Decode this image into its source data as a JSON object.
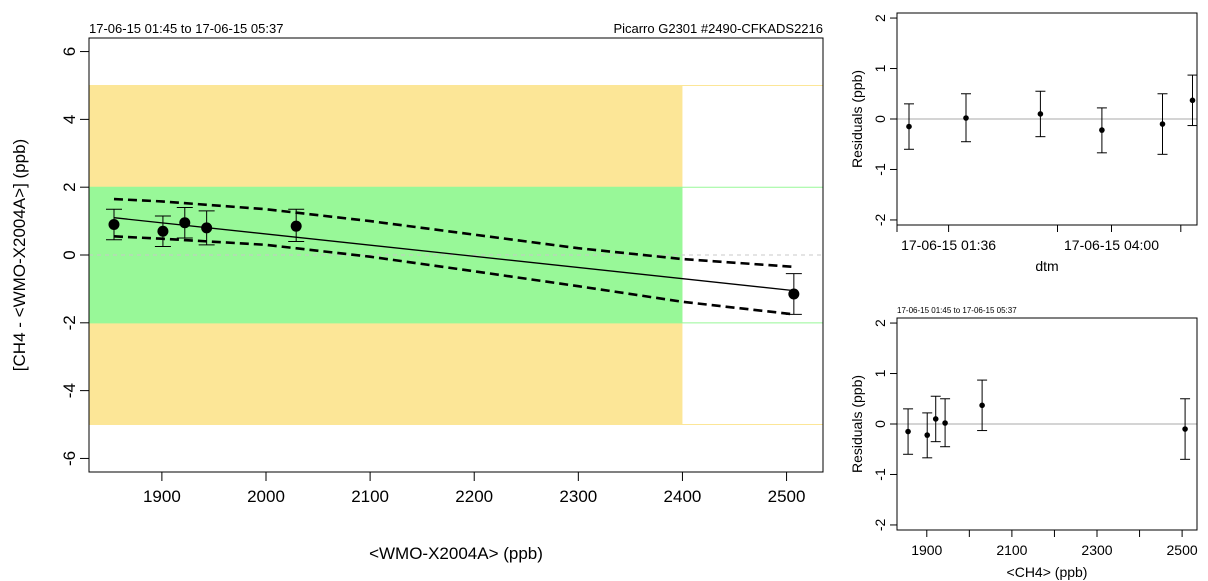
{
  "chart_data": [
    {
      "type": "scatter",
      "header_left": "17-06-15 01:45 to 17-06-15 05:37",
      "header_right": "Picarro G2301 #2490-CFKADS2216",
      "xlabel": "<WMO-X2004A> (ppb)",
      "ylabel": "[CH4 - <WMO-X2004A>] (ppb)",
      "xlim": [
        1830,
        2535
      ],
      "ylim": [
        -6.4,
        6.4
      ],
      "xticks": [
        1900,
        2000,
        2100,
        2200,
        2300,
        2400,
        2500
      ],
      "yticks": [
        -6,
        -4,
        -2,
        0,
        2,
        4,
        6
      ],
      "bands": [
        {
          "name": "compatibility-goal-outer",
          "color": "#fce697",
          "x": [
            1830,
            2400
          ],
          "y": [
            -5,
            5
          ]
        },
        {
          "name": "compatibility-goal-inner",
          "color": "#98f898",
          "x": [
            1830,
            2400
          ],
          "y": [
            -2,
            2
          ]
        }
      ],
      "hlines": [
        {
          "y": 5,
          "color": "#fce697"
        },
        {
          "y": -5,
          "color": "#fce697"
        },
        {
          "y": 2,
          "color": "#98f898"
        },
        {
          "y": -2,
          "color": "#98f898"
        },
        {
          "y": 0,
          "color": "#c8c8c8",
          "dashed": true
        }
      ],
      "points": [
        {
          "x": 1854,
          "y": 0.9,
          "lo": 0.45,
          "hi": 1.35
        },
        {
          "x": 1901,
          "y": 0.7,
          "lo": 0.25,
          "hi": 1.15
        },
        {
          "x": 1922,
          "y": 0.95,
          "lo": 0.5,
          "hi": 1.4
        },
        {
          "x": 1943,
          "y": 0.8,
          "lo": 0.3,
          "hi": 1.3
        },
        {
          "x": 2029,
          "y": 0.85,
          "lo": 0.4,
          "hi": 1.35
        },
        {
          "x": 2507,
          "y": -1.15,
          "lo": -1.75,
          "hi": -0.55
        }
      ],
      "fit_line": [
        [
          1854,
          1.1
        ],
        [
          2507,
          -1.05
        ]
      ],
      "ci_upper": [
        [
          1854,
          1.65
        ],
        [
          1900,
          1.58
        ],
        [
          2000,
          1.35
        ],
        [
          2100,
          1.0
        ],
        [
          2200,
          0.6
        ],
        [
          2300,
          0.2
        ],
        [
          2400,
          -0.12
        ],
        [
          2507,
          -0.35
        ]
      ],
      "ci_lower": [
        [
          1854,
          0.55
        ],
        [
          1900,
          0.48
        ],
        [
          2000,
          0.3
        ],
        [
          2100,
          -0.05
        ],
        [
          2200,
          -0.48
        ],
        [
          2300,
          -0.92
        ],
        [
          2400,
          -1.38
        ],
        [
          2507,
          -1.75
        ]
      ]
    },
    {
      "type": "scatter",
      "xlabel": "dtm",
      "ylabel": "Residuals (ppb)",
      "xlim": [
        0,
        100
      ],
      "ylim": [
        -2.1,
        2.1
      ],
      "xticks": [
        0,
        17.2,
        53.5,
        71.5,
        94.6
      ],
      "xticklabels": [
        "",
        "17-06-15 01:36",
        "",
        "17-06-15 04:00",
        ""
      ],
      "yticks": [
        -2,
        -1,
        0,
        1,
        2
      ],
      "hline": 0,
      "points": [
        {
          "x": 4,
          "y": -0.15,
          "lo": -0.6,
          "hi": 0.3
        },
        {
          "x": 23,
          "y": 0.02,
          "lo": -0.45,
          "hi": 0.5
        },
        {
          "x": 47.8,
          "y": 0.1,
          "lo": -0.35,
          "hi": 0.55
        },
        {
          "x": 68.3,
          "y": -0.22,
          "lo": -0.67,
          "hi": 0.22
        },
        {
          "x": 88.5,
          "y": -0.1,
          "lo": -0.7,
          "hi": 0.5
        },
        {
          "x": 98.5,
          "y": 0.37,
          "lo": -0.13,
          "hi": 0.87
        }
      ]
    },
    {
      "type": "scatter",
      "header_left": "17-06-15 01:45 to 17-06-15 05:37",
      "xlabel": "<CH4> (ppb)",
      "ylabel": "Residuals (ppb)",
      "xlim": [
        1830,
        2535
      ],
      "ylim": [
        -2.1,
        2.1
      ],
      "xticks": [
        1900,
        2000,
        2100,
        2200,
        2300,
        2400,
        2500
      ],
      "xticklabels": [
        "1900",
        "",
        "2100",
        "",
        "2300",
        "",
        "2500"
      ],
      "yticks": [
        -2,
        -1,
        0,
        1,
        2
      ],
      "hline": 0,
      "points": [
        {
          "x": 1856,
          "y": -0.15,
          "lo": -0.6,
          "hi": 0.3
        },
        {
          "x": 1901,
          "y": -0.22,
          "lo": -0.67,
          "hi": 0.22
        },
        {
          "x": 1921,
          "y": 0.1,
          "lo": -0.35,
          "hi": 0.55
        },
        {
          "x": 1943,
          "y": 0.02,
          "lo": -0.45,
          "hi": 0.5
        },
        {
          "x": 2030,
          "y": 0.37,
          "lo": -0.13,
          "hi": 0.87
        },
        {
          "x": 2507,
          "y": -0.1,
          "lo": -0.7,
          "hi": 0.5
        }
      ]
    }
  ]
}
